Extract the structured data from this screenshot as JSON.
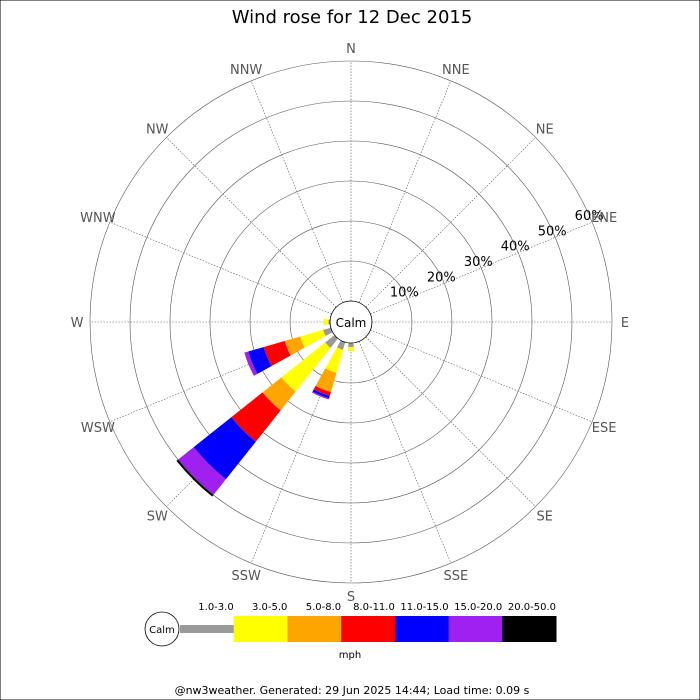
{
  "title": "Wind rose for 12 Dec 2015",
  "footer": "@nw3weather. Generated: 29 Jun 2025 14:44; Load time: 0.09 s",
  "calm_label": "Calm",
  "units": "mph",
  "chart_data": {
    "type": "windrose",
    "directions": [
      "N",
      "NNE",
      "NE",
      "ENE",
      "E",
      "ESE",
      "SE",
      "SSE",
      "S",
      "SSW",
      "SW",
      "WSW",
      "W",
      "WNW",
      "NW",
      "NNW"
    ],
    "radial_ticks": [
      "10%",
      "20%",
      "30%",
      "40%",
      "50%",
      "60%"
    ],
    "radial_max": 60,
    "grid": true,
    "legend_position": "bottom",
    "bins": [
      {
        "label": "1.0-3.0",
        "color": "#999999"
      },
      {
        "label": "3.0-5.0",
        "color": "#ffff00"
      },
      {
        "label": "5.0-8.0",
        "color": "#ffa500"
      },
      {
        "label": "8.0-11.0",
        "color": "#ff0000"
      },
      {
        "label": "11.0-15.0",
        "color": "#0000ff"
      },
      {
        "label": "15.0-20.0",
        "color": "#a020f0"
      },
      {
        "label": "20.0-50.0",
        "color": "#000000"
      }
    ],
    "series": [
      {
        "direction": "S",
        "values": [
          1.0,
          1.0,
          0,
          0,
          0,
          0,
          0
        ]
      },
      {
        "direction": "SSW",
        "values": [
          2.0,
          6.0,
          5.0,
          1.0,
          0.6,
          0.3,
          0
        ]
      },
      {
        "direction": "SW",
        "values": [
          3.0,
          14.0,
          6.0,
          10.0,
          12.0,
          5.0,
          0.5
        ]
      },
      {
        "direction": "WSW",
        "values": [
          2.0,
          6.0,
          4.0,
          5.5,
          4.0,
          1.0,
          0
        ]
      },
      {
        "direction": "W",
        "values": [
          0.4,
          1.2,
          0,
          0,
          0,
          0,
          0
        ]
      }
    ]
  }
}
